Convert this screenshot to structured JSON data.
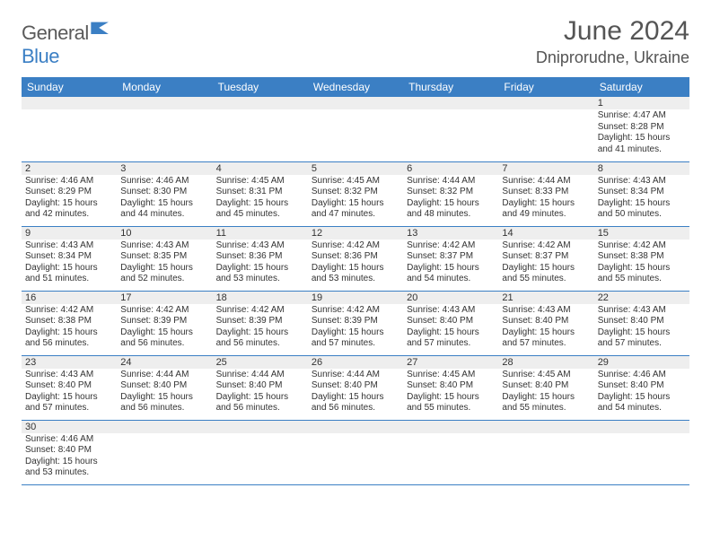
{
  "brand": {
    "part1": "General",
    "part2": "Blue"
  },
  "title": "June 2024",
  "location": "Dniprorudne, Ukraine",
  "colors": {
    "header_bg": "#3b7fc4",
    "header_fg": "#ffffff",
    "daynum_bg": "#eeeeee",
    "cell_border": "#3b7fc4",
    "text": "#333333",
    "title_text": "#555555"
  },
  "day_headers": [
    "Sunday",
    "Monday",
    "Tuesday",
    "Wednesday",
    "Thursday",
    "Friday",
    "Saturday"
  ],
  "weeks": [
    [
      {
        "n": "",
        "sunrise": "",
        "sunset": "",
        "daylight": ""
      },
      {
        "n": "",
        "sunrise": "",
        "sunset": "",
        "daylight": ""
      },
      {
        "n": "",
        "sunrise": "",
        "sunset": "",
        "daylight": ""
      },
      {
        "n": "",
        "sunrise": "",
        "sunset": "",
        "daylight": ""
      },
      {
        "n": "",
        "sunrise": "",
        "sunset": "",
        "daylight": ""
      },
      {
        "n": "",
        "sunrise": "",
        "sunset": "",
        "daylight": ""
      },
      {
        "n": "1",
        "sunrise": "Sunrise: 4:47 AM",
        "sunset": "Sunset: 8:28 PM",
        "daylight": "Daylight: 15 hours and 41 minutes."
      }
    ],
    [
      {
        "n": "2",
        "sunrise": "Sunrise: 4:46 AM",
        "sunset": "Sunset: 8:29 PM",
        "daylight": "Daylight: 15 hours and 42 minutes."
      },
      {
        "n": "3",
        "sunrise": "Sunrise: 4:46 AM",
        "sunset": "Sunset: 8:30 PM",
        "daylight": "Daylight: 15 hours and 44 minutes."
      },
      {
        "n": "4",
        "sunrise": "Sunrise: 4:45 AM",
        "sunset": "Sunset: 8:31 PM",
        "daylight": "Daylight: 15 hours and 45 minutes."
      },
      {
        "n": "5",
        "sunrise": "Sunrise: 4:45 AM",
        "sunset": "Sunset: 8:32 PM",
        "daylight": "Daylight: 15 hours and 47 minutes."
      },
      {
        "n": "6",
        "sunrise": "Sunrise: 4:44 AM",
        "sunset": "Sunset: 8:32 PM",
        "daylight": "Daylight: 15 hours and 48 minutes."
      },
      {
        "n": "7",
        "sunrise": "Sunrise: 4:44 AM",
        "sunset": "Sunset: 8:33 PM",
        "daylight": "Daylight: 15 hours and 49 minutes."
      },
      {
        "n": "8",
        "sunrise": "Sunrise: 4:43 AM",
        "sunset": "Sunset: 8:34 PM",
        "daylight": "Daylight: 15 hours and 50 minutes."
      }
    ],
    [
      {
        "n": "9",
        "sunrise": "Sunrise: 4:43 AM",
        "sunset": "Sunset: 8:34 PM",
        "daylight": "Daylight: 15 hours and 51 minutes."
      },
      {
        "n": "10",
        "sunrise": "Sunrise: 4:43 AM",
        "sunset": "Sunset: 8:35 PM",
        "daylight": "Daylight: 15 hours and 52 minutes."
      },
      {
        "n": "11",
        "sunrise": "Sunrise: 4:43 AM",
        "sunset": "Sunset: 8:36 PM",
        "daylight": "Daylight: 15 hours and 53 minutes."
      },
      {
        "n": "12",
        "sunrise": "Sunrise: 4:42 AM",
        "sunset": "Sunset: 8:36 PM",
        "daylight": "Daylight: 15 hours and 53 minutes."
      },
      {
        "n": "13",
        "sunrise": "Sunrise: 4:42 AM",
        "sunset": "Sunset: 8:37 PM",
        "daylight": "Daylight: 15 hours and 54 minutes."
      },
      {
        "n": "14",
        "sunrise": "Sunrise: 4:42 AM",
        "sunset": "Sunset: 8:37 PM",
        "daylight": "Daylight: 15 hours and 55 minutes."
      },
      {
        "n": "15",
        "sunrise": "Sunrise: 4:42 AM",
        "sunset": "Sunset: 8:38 PM",
        "daylight": "Daylight: 15 hours and 55 minutes."
      }
    ],
    [
      {
        "n": "16",
        "sunrise": "Sunrise: 4:42 AM",
        "sunset": "Sunset: 8:38 PM",
        "daylight": "Daylight: 15 hours and 56 minutes."
      },
      {
        "n": "17",
        "sunrise": "Sunrise: 4:42 AM",
        "sunset": "Sunset: 8:39 PM",
        "daylight": "Daylight: 15 hours and 56 minutes."
      },
      {
        "n": "18",
        "sunrise": "Sunrise: 4:42 AM",
        "sunset": "Sunset: 8:39 PM",
        "daylight": "Daylight: 15 hours and 56 minutes."
      },
      {
        "n": "19",
        "sunrise": "Sunrise: 4:42 AM",
        "sunset": "Sunset: 8:39 PM",
        "daylight": "Daylight: 15 hours and 57 minutes."
      },
      {
        "n": "20",
        "sunrise": "Sunrise: 4:43 AM",
        "sunset": "Sunset: 8:40 PM",
        "daylight": "Daylight: 15 hours and 57 minutes."
      },
      {
        "n": "21",
        "sunrise": "Sunrise: 4:43 AM",
        "sunset": "Sunset: 8:40 PM",
        "daylight": "Daylight: 15 hours and 57 minutes."
      },
      {
        "n": "22",
        "sunrise": "Sunrise: 4:43 AM",
        "sunset": "Sunset: 8:40 PM",
        "daylight": "Daylight: 15 hours and 57 minutes."
      }
    ],
    [
      {
        "n": "23",
        "sunrise": "Sunrise: 4:43 AM",
        "sunset": "Sunset: 8:40 PM",
        "daylight": "Daylight: 15 hours and 57 minutes."
      },
      {
        "n": "24",
        "sunrise": "Sunrise: 4:44 AM",
        "sunset": "Sunset: 8:40 PM",
        "daylight": "Daylight: 15 hours and 56 minutes."
      },
      {
        "n": "25",
        "sunrise": "Sunrise: 4:44 AM",
        "sunset": "Sunset: 8:40 PM",
        "daylight": "Daylight: 15 hours and 56 minutes."
      },
      {
        "n": "26",
        "sunrise": "Sunrise: 4:44 AM",
        "sunset": "Sunset: 8:40 PM",
        "daylight": "Daylight: 15 hours and 56 minutes."
      },
      {
        "n": "27",
        "sunrise": "Sunrise: 4:45 AM",
        "sunset": "Sunset: 8:40 PM",
        "daylight": "Daylight: 15 hours and 55 minutes."
      },
      {
        "n": "28",
        "sunrise": "Sunrise: 4:45 AM",
        "sunset": "Sunset: 8:40 PM",
        "daylight": "Daylight: 15 hours and 55 minutes."
      },
      {
        "n": "29",
        "sunrise": "Sunrise: 4:46 AM",
        "sunset": "Sunset: 8:40 PM",
        "daylight": "Daylight: 15 hours and 54 minutes."
      }
    ],
    [
      {
        "n": "30",
        "sunrise": "Sunrise: 4:46 AM",
        "sunset": "Sunset: 8:40 PM",
        "daylight": "Daylight: 15 hours and 53 minutes."
      },
      {
        "n": "",
        "sunrise": "",
        "sunset": "",
        "daylight": ""
      },
      {
        "n": "",
        "sunrise": "",
        "sunset": "",
        "daylight": ""
      },
      {
        "n": "",
        "sunrise": "",
        "sunset": "",
        "daylight": ""
      },
      {
        "n": "",
        "sunrise": "",
        "sunset": "",
        "daylight": ""
      },
      {
        "n": "",
        "sunrise": "",
        "sunset": "",
        "daylight": ""
      },
      {
        "n": "",
        "sunrise": "",
        "sunset": "",
        "daylight": ""
      }
    ]
  ]
}
